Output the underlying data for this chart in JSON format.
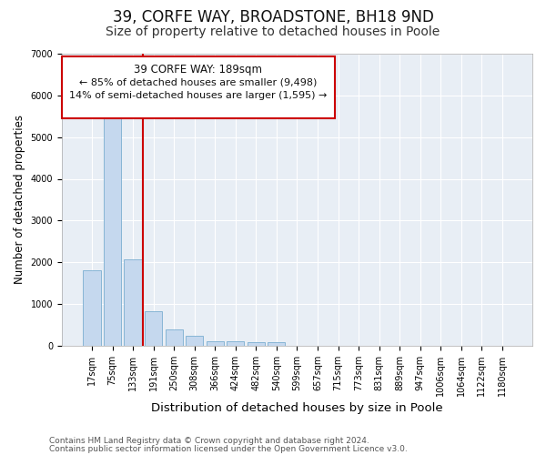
{
  "title": "39, CORFE WAY, BROADSTONE, BH18 9ND",
  "subtitle": "Size of property relative to detached houses in Poole",
  "xlabel": "Distribution of detached houses by size in Poole",
  "ylabel": "Number of detached properties",
  "categories": [
    "17sqm",
    "75sqm",
    "133sqm",
    "191sqm",
    "250sqm",
    "308sqm",
    "366sqm",
    "424sqm",
    "482sqm",
    "540sqm",
    "599sqm",
    "657sqm",
    "715sqm",
    "773sqm",
    "831sqm",
    "889sqm",
    "947sqm",
    "1006sqm",
    "1064sqm",
    "1122sqm",
    "1180sqm"
  ],
  "values": [
    1800,
    5780,
    2060,
    830,
    380,
    230,
    115,
    115,
    90,
    75,
    0,
    0,
    0,
    0,
    0,
    0,
    0,
    0,
    0,
    0,
    0
  ],
  "bar_color": "#c5d8ee",
  "bar_edge_color": "#7aaed0",
  "vline_color": "#cc0000",
  "ylim": [
    0,
    7000
  ],
  "yticks": [
    0,
    1000,
    2000,
    3000,
    4000,
    5000,
    6000,
    7000
  ],
  "annotation_title": "39 CORFE WAY: 189sqm",
  "annotation_line1": "← 85% of detached houses are smaller (9,498)",
  "annotation_line2": "14% of semi-detached houses are larger (1,595) →",
  "annotation_box_color": "#cc0000",
  "footer1": "Contains HM Land Registry data © Crown copyright and database right 2024.",
  "footer2": "Contains public sector information licensed under the Open Government Licence v3.0.",
  "bg_color": "#ffffff",
  "plot_bg_color": "#e8eef5",
  "grid_color": "#ffffff",
  "title_fontsize": 12,
  "subtitle_fontsize": 10,
  "tick_fontsize": 7,
  "ylabel_fontsize": 8.5,
  "xlabel_fontsize": 9.5,
  "footer_fontsize": 6.5
}
